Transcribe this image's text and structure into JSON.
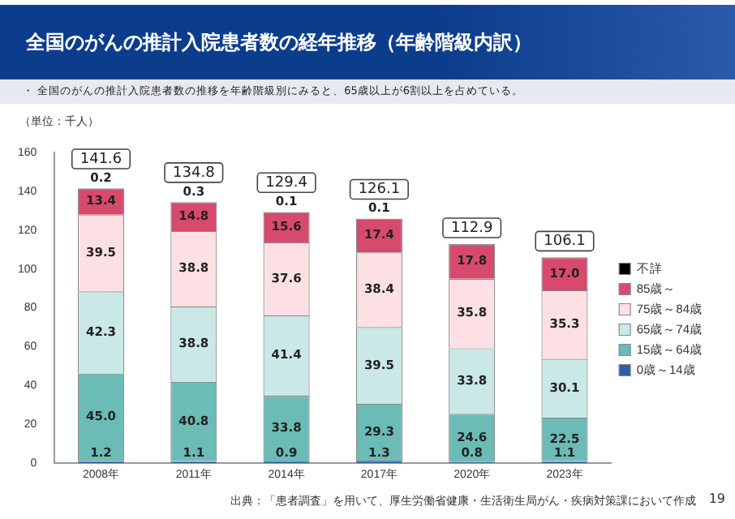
{
  "chart_data": {
    "type": "bar",
    "stacked": true,
    "title": "全国のがんの推計入院患者数の経年推移（年齢階級内訳）",
    "subtitle": "・ 全国のがんの推計入院患者数の推移を年齢階級別にみると、65歳以上が6割以上を占めている。",
    "ylabel": "（単位：千人）",
    "categories": [
      "2008年",
      "2011年",
      "2014年",
      "2017年",
      "2020年",
      "2023年"
    ],
    "series": [
      {
        "name": "0歳～14歳",
        "color": "#2f5ea8",
        "values": [
          1.2,
          1.1,
          0.9,
          1.3,
          0.8,
          1.1
        ],
        "value_labels": [
          "1.2",
          "1.1",
          "0.9",
          "1.3",
          "0.8",
          "1.1"
        ]
      },
      {
        "name": "15歳～64歳",
        "color": "#6bbcb6",
        "values": [
          45.0,
          40.8,
          33.8,
          29.3,
          24.6,
          22.5
        ],
        "value_labels": [
          "45.0",
          "40.8",
          "33.8",
          "29.3",
          "24.6",
          "22.5"
        ]
      },
      {
        "name": "65歳～74歳",
        "color": "#c9e8e6",
        "values": [
          42.3,
          38.8,
          41.4,
          39.5,
          33.8,
          30.1
        ],
        "value_labels": [
          "42.3",
          "38.8",
          "41.4",
          "39.5",
          "33.8",
          "30.1"
        ]
      },
      {
        "name": "75歳～84歳",
        "color": "#fde0e4",
        "values": [
          39.5,
          38.8,
          37.6,
          38.4,
          35.8,
          35.3
        ],
        "value_labels": [
          "39.5",
          "38.8",
          "37.6",
          "38.4",
          "35.8",
          "35.3"
        ]
      },
      {
        "name": "85歳～",
        "color": "#d84a6d",
        "values": [
          13.4,
          14.8,
          15.6,
          17.4,
          17.8,
          17.0
        ],
        "value_labels": [
          "13.4",
          "14.8",
          "15.6",
          "17.4",
          "17.8",
          "17.0"
        ]
      },
      {
        "name": "不詳",
        "color": "#000000",
        "values": [
          0.2,
          0.3,
          0.1,
          0.1,
          null,
          null
        ],
        "value_labels": [
          "0.2",
          "0.3",
          "0.1",
          "0.1",
          null,
          null
        ]
      }
    ],
    "totals": [
      "141.6",
      "134.8",
      "129.4",
      "126.1",
      "112.9",
      "106.1"
    ],
    "ylim": [
      0,
      160
    ],
    "yticks": [
      0,
      20,
      40,
      60,
      80,
      100,
      120,
      140,
      160
    ],
    "grid": false,
    "legend": "right",
    "annotations": [
      "出典：「患者調査」を用いて、厚生労働省健康・生活衛生局がん・疾病対策課において作成",
      "19"
    ]
  }
}
